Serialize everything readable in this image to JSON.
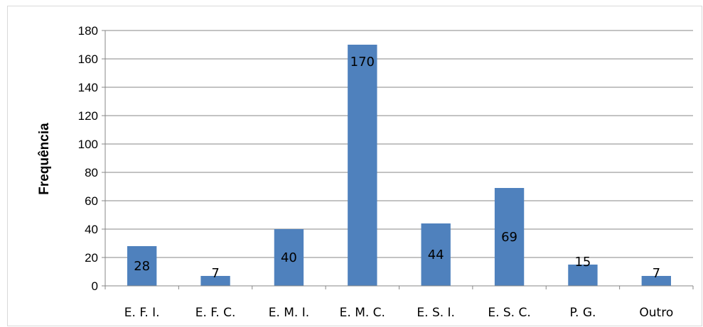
{
  "chart_data": {
    "type": "bar",
    "title": "",
    "xlabel": "",
    "ylabel": "Frequência",
    "categories": [
      "E. F. I.",
      "E. F. C.",
      "E. M. I.",
      "E. M. C.",
      "E. S. I.",
      "E. S. C.",
      "P. G.",
      "Outro"
    ],
    "values": [
      28,
      7,
      40,
      170,
      44,
      69,
      15,
      7
    ],
    "ylim": [
      0,
      180
    ],
    "yticks": [
      0,
      20,
      40,
      60,
      80,
      100,
      120,
      140,
      160,
      180
    ],
    "grid": true,
    "legend": "none",
    "bar_color": "#4f81bd",
    "grid_color": "#878787"
  }
}
